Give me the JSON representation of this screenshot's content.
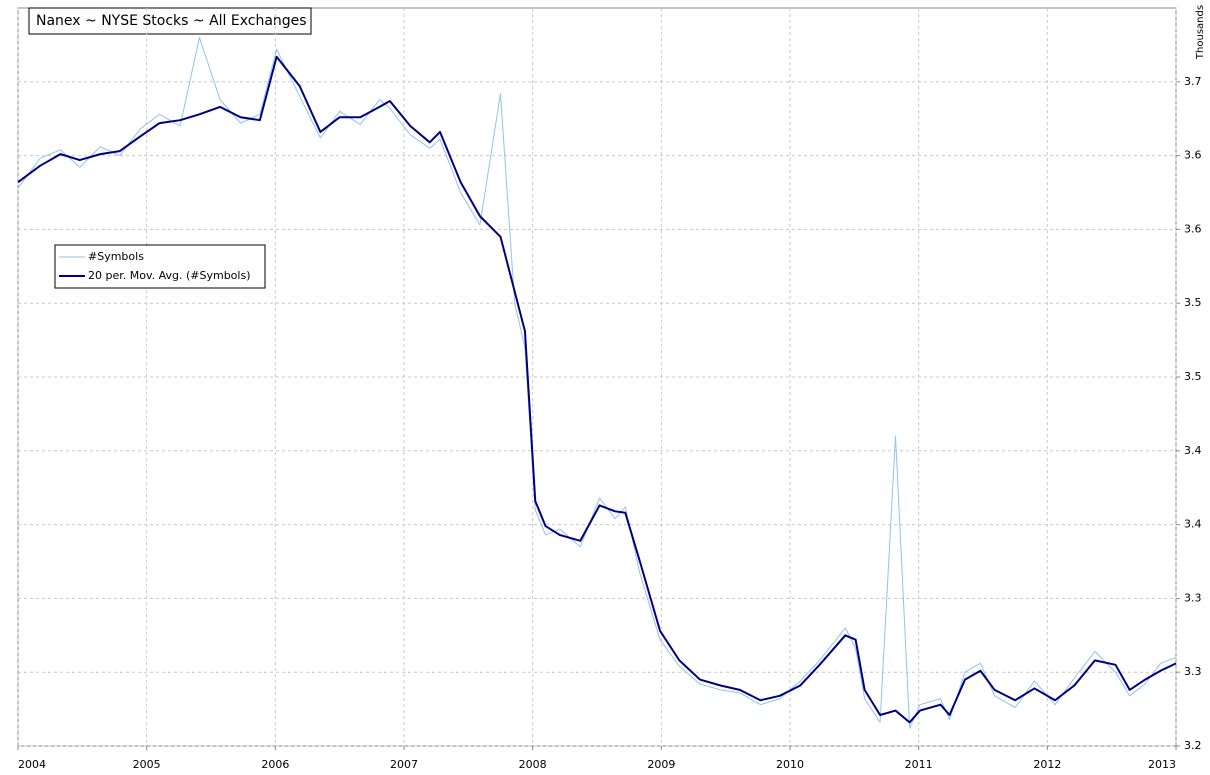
{
  "chart_data": {
    "type": "line",
    "title": "Nanex ~ NYSE Stocks ~ All Exchanges",
    "ylabel": "Thousands",
    "x": [
      2004.0,
      2004.17,
      2004.33,
      2004.48,
      2004.64,
      2004.79,
      2004.95,
      2005.1,
      2005.26,
      2005.41,
      2005.57,
      2005.73,
      2005.88,
      2006.01,
      2006.19,
      2006.35,
      2006.5,
      2006.66,
      2006.81,
      2006.89,
      2007.05,
      2007.2,
      2007.28,
      2007.44,
      2007.59,
      2007.75,
      2007.86,
      2007.94,
      2008.02,
      2008.1,
      2008.21,
      2008.37,
      2008.52,
      2008.64,
      2008.72,
      2008.83,
      2008.99,
      2009.14,
      2009.3,
      2009.46,
      2009.61,
      2009.77,
      2009.92,
      2010.08,
      2010.23,
      2010.43,
      2010.51,
      2010.58,
      2010.7,
      2010.82,
      2010.93,
      2011.01,
      2011.17,
      2011.24,
      2011.36,
      2011.48,
      2011.59,
      2011.75,
      2011.9,
      2012.06,
      2012.21,
      2012.37,
      2012.53,
      2012.64,
      2012.76,
      2012.88,
      2013.0
    ],
    "series": [
      {
        "name": "#Symbols",
        "color": "#8fc3f0",
        "width": 1,
        "values": [
          3.578,
          3.598,
          3.604,
          3.592,
          3.606,
          3.6,
          3.618,
          3.628,
          3.62,
          3.68,
          3.638,
          3.622,
          3.628,
          3.672,
          3.64,
          3.612,
          3.63,
          3.621,
          3.638,
          3.632,
          3.614,
          3.605,
          3.611,
          3.575,
          3.553,
          3.642,
          3.5,
          3.47,
          3.36,
          3.343,
          3.347,
          3.335,
          3.368,
          3.354,
          3.362,
          3.318,
          3.272,
          3.254,
          3.242,
          3.238,
          3.236,
          3.228,
          3.232,
          3.244,
          3.258,
          3.28,
          3.266,
          3.232,
          3.216,
          3.41,
          3.212,
          3.228,
          3.232,
          3.218,
          3.25,
          3.256,
          3.234,
          3.226,
          3.244,
          3.228,
          3.246,
          3.264,
          3.25,
          3.234,
          3.242,
          3.256,
          3.26
        ]
      },
      {
        "name": "20 per. Mov. Avg. (#Symbols)",
        "color": "#000080",
        "width": 2,
        "values": [
          3.582,
          3.593,
          3.601,
          3.597,
          3.601,
          3.603,
          3.613,
          3.622,
          3.624,
          3.628,
          3.633,
          3.626,
          3.624,
          3.667,
          3.647,
          3.616,
          3.626,
          3.626,
          3.633,
          3.637,
          3.62,
          3.609,
          3.616,
          3.582,
          3.559,
          3.545,
          3.508,
          3.481,
          3.366,
          3.349,
          3.343,
          3.339,
          3.363,
          3.359,
          3.358,
          3.326,
          3.278,
          3.258,
          3.245,
          3.241,
          3.238,
          3.231,
          3.234,
          3.241,
          3.255,
          3.275,
          3.272,
          3.238,
          3.221,
          3.224,
          3.216,
          3.224,
          3.228,
          3.221,
          3.245,
          3.251,
          3.238,
          3.231,
          3.239,
          3.231,
          3.241,
          3.258,
          3.255,
          3.238,
          3.245,
          3.251,
          3.256
        ]
      }
    ],
    "xlim": [
      2004,
      2013
    ],
    "xticks": [
      2004,
      2005,
      2006,
      2007,
      2008,
      2009,
      2010,
      2011,
      2012,
      2013
    ],
    "ylim": [
      3.2,
      3.7
    ],
    "yticks": [
      3.2,
      {
        "value": 3.25,
        "label": "3.3"
      },
      3.3,
      {
        "value": 3.35,
        "label": "3.4"
      },
      3.4,
      {
        "value": 3.45,
        "label": "3.5"
      },
      3.5,
      {
        "value": 3.55,
        "label": "3.6"
      },
      3.6,
      {
        "value": 3.65,
        "label": "3.7"
      }
    ],
    "grid": true,
    "legend_position": "upper left"
  }
}
